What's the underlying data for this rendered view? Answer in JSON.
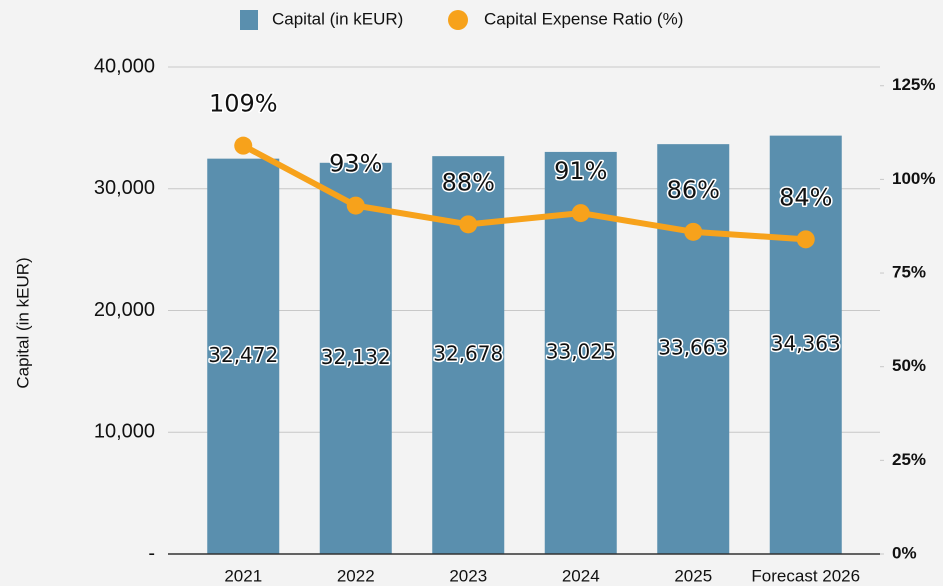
{
  "chart_data": {
    "type": "bar",
    "y_axis_label": "Capital (in kEUR)",
    "categories": [
      "2021",
      "2022",
      "2023",
      "2024",
      "2025",
      "Forecast 2026"
    ],
    "series": [
      {
        "name": "Capital (in kEUR)",
        "type": "bar",
        "color": "#5a8fae",
        "values": [
          32472,
          32132,
          32678,
          33025,
          33663,
          34363
        ],
        "value_labels": [
          "32,472",
          "32,132",
          "32,678",
          "33,025",
          "33,663",
          "34,363"
        ]
      },
      {
        "name": "Capital Expense Ratio (%)",
        "type": "line",
        "axis": "y2",
        "color": "#f7a21b",
        "values": [
          109,
          93,
          88,
          91,
          86,
          84
        ],
        "value_labels": [
          "109%",
          "93%",
          "88%",
          "91%",
          "86%",
          "84%"
        ]
      }
    ],
    "ylim": [
      0,
      40000
    ],
    "yticks": [
      {
        "value": 0,
        "label": "-"
      },
      {
        "value": 10000,
        "label": "10,000"
      },
      {
        "value": 20000,
        "label": "20,000"
      },
      {
        "value": 30000,
        "label": "30,000"
      },
      {
        "value": 40000,
        "label": "40,000"
      }
    ],
    "y2lim": [
      0,
      130
    ],
    "y2ticks": [
      {
        "value": 0,
        "label": "0%"
      },
      {
        "value": 25,
        "label": "25%"
      },
      {
        "value": 50,
        "label": "50%"
      },
      {
        "value": 75,
        "label": "75%"
      },
      {
        "value": 100,
        "label": "100%"
      },
      {
        "value": 125,
        "label": "125%"
      }
    ],
    "grid": true,
    "legend": "top"
  }
}
